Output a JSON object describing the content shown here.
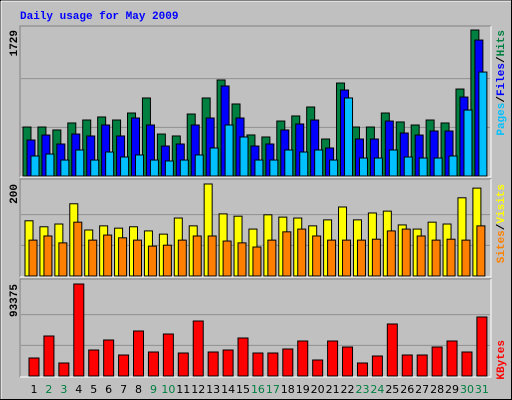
{
  "chart_data": [
    {
      "type": "bar",
      "title": "Daily usage for May 2009",
      "ylim": [
        0,
        1729
      ],
      "yticks": [
        1729
      ],
      "series": [
        {
          "name": "Hits",
          "color": "#008040",
          "values": [
            580,
            580,
            545,
            628,
            663,
            699,
            663,
            746,
            924,
            497,
            474,
            734,
            924,
            1137,
            853,
            486,
            462,
            651,
            711,
            817,
            438,
            1101,
            580,
            580,
            746,
            640,
            604,
            663,
            628,
            1030,
            1729
          ]
        },
        {
          "name": "Files",
          "color": "#0000ff",
          "values": [
            426,
            485,
            379,
            497,
            474,
            604,
            474,
            687,
            604,
            355,
            379,
            604,
            687,
            1066,
            687,
            355,
            379,
            545,
            616,
            663,
            332,
            1018,
            438,
            438,
            651,
            509,
            485,
            533,
            533,
            935,
            1610
          ]
        },
        {
          "name": "Pages",
          "color": "#00c0ff",
          "values": [
            237,
            260,
            189,
            308,
            189,
            284,
            225,
            249,
            189,
            178,
            189,
            249,
            332,
            604,
            462,
            189,
            189,
            308,
            284,
            308,
            189,
            924,
            213,
            213,
            308,
            225,
            213,
            213,
            237,
            781,
            1231
          ]
        }
      ]
    },
    {
      "type": "bar",
      "ylim": [
        0,
        200
      ],
      "yticks": [
        200
      ],
      "series": [
        {
          "name": "Visits",
          "color": "#ffff00",
          "values": [
            120,
            107,
            113,
            157,
            100,
            109,
            104,
            107,
            98,
            91,
            126,
            109,
            200,
            135,
            130,
            102,
            133,
            128,
            126,
            109,
            122,
            150,
            122,
            137,
            141,
            111,
            102,
            117,
            113,
            170,
            191
          ]
        },
        {
          "name": "Sites",
          "color": "#ff8000",
          "values": [
            78,
            87,
            72,
            117,
            78,
            89,
            83,
            78,
            65,
            67,
            78,
            87,
            87,
            76,
            72,
            63,
            78,
            96,
            102,
            87,
            78,
            78,
            78,
            80,
            98,
            102,
            87,
            78,
            80,
            78,
            109
          ]
        }
      ]
    },
    {
      "type": "bar",
      "ylim": [
        0,
        93375
      ],
      "yticks": [
        93375
      ],
      "series": [
        {
          "name": "KBytes",
          "color": "#ff0000",
          "values": [
            18270,
            40600,
            13195,
            93375,
            26390,
            36540,
            21315,
            45675,
            24360,
            42630,
            23345,
            55825,
            24360,
            26390,
            38570,
            23345,
            23345,
            27405,
            35525,
            16240,
            35525,
            29435,
            13195,
            20300,
            52780,
            21315,
            21315,
            29435,
            35525,
            24360,
            59885
          ]
        }
      ],
      "categories": [
        "1",
        "2",
        "3",
        "4",
        "5",
        "6",
        "7",
        "8",
        "9",
        "10",
        "11",
        "12",
        "13",
        "14",
        "15",
        "16",
        "17",
        "18",
        "19",
        "20",
        "21",
        "22",
        "23",
        "24",
        "25",
        "26",
        "27",
        "28",
        "29",
        "30",
        "31"
      ],
      "category_colors": [
        "#000000",
        "#008040",
        "#008040",
        "#000000",
        "#000000",
        "#000000",
        "#000000",
        "#000000",
        "#008040",
        "#008040",
        "#000000",
        "#000000",
        "#000000",
        "#000000",
        "#000000",
        "#008040",
        "#008040",
        "#000000",
        "#000000",
        "#000000",
        "#000000",
        "#000000",
        "#008040",
        "#008040",
        "#000000",
        "#000000",
        "#000000",
        "#000000",
        "#000000",
        "#008040",
        "#008040"
      ]
    }
  ],
  "legend_separator": "/"
}
